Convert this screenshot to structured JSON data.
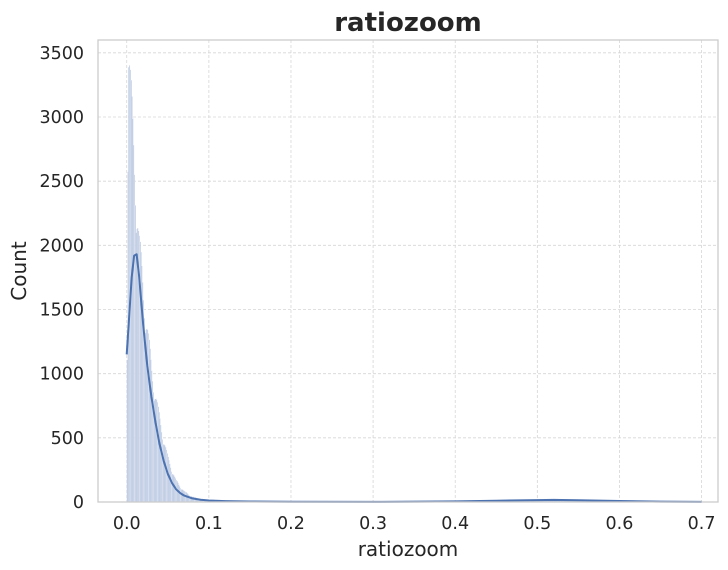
{
  "chart_data": {
    "type": "histogram",
    "title": "ratiozoom",
    "xlabel": "ratiozoom",
    "ylabel": "Count",
    "xlim": [
      -0.035,
      0.72
    ],
    "ylim": [
      0,
      3600
    ],
    "xticks": [
      0.0,
      0.1,
      0.2,
      0.3,
      0.4,
      0.5,
      0.6,
      0.7
    ],
    "xtick_labels": [
      "0.0",
      "0.1",
      "0.2",
      "0.3",
      "0.4",
      "0.5",
      "0.6",
      "0.7"
    ],
    "yticks": [
      0,
      500,
      1000,
      1500,
      2000,
      2500,
      3000,
      3500
    ],
    "ytick_labels": [
      "0",
      "500",
      "1000",
      "1500",
      "2000",
      "2500",
      "3000",
      "3500"
    ],
    "grid": true,
    "legend": "none",
    "bar_color": "#b3c3df",
    "bar_edge_color": "#ffffff",
    "kde_color": "#4c72b0",
    "histogram_peaks": [
      {
        "x": 0.0,
        "count": 500
      },
      {
        "x": 0.002,
        "count": 3420
      },
      {
        "x": 0.005,
        "count": 3050
      },
      {
        "x": 0.01,
        "count": 2480
      },
      {
        "x": 0.015,
        "count": 1950
      },
      {
        "x": 0.02,
        "count": 1600
      },
      {
        "x": 0.03,
        "count": 1000
      },
      {
        "x": 0.04,
        "count": 620
      },
      {
        "x": 0.05,
        "count": 330
      },
      {
        "x": 0.06,
        "count": 160
      },
      {
        "x": 0.07,
        "count": 80
      },
      {
        "x": 0.08,
        "count": 40
      }
    ],
    "kde": {
      "x": [
        0.0,
        0.003,
        0.006,
        0.009,
        0.012,
        0.015,
        0.02,
        0.025,
        0.03,
        0.035,
        0.04,
        0.045,
        0.05,
        0.055,
        0.06,
        0.065,
        0.07,
        0.08,
        0.09,
        0.1,
        0.12,
        0.15,
        0.2,
        0.3,
        0.4,
        0.45,
        0.5,
        0.52,
        0.55,
        0.6,
        0.65,
        0.7
      ],
      "y": [
        1150,
        1450,
        1750,
        1920,
        1930,
        1760,
        1380,
        1060,
        820,
        620,
        450,
        320,
        220,
        150,
        100,
        70,
        50,
        28,
        18,
        12,
        7,
        4,
        2,
        1,
        5,
        10,
        15,
        16,
        14,
        8,
        3,
        1
      ]
    }
  }
}
